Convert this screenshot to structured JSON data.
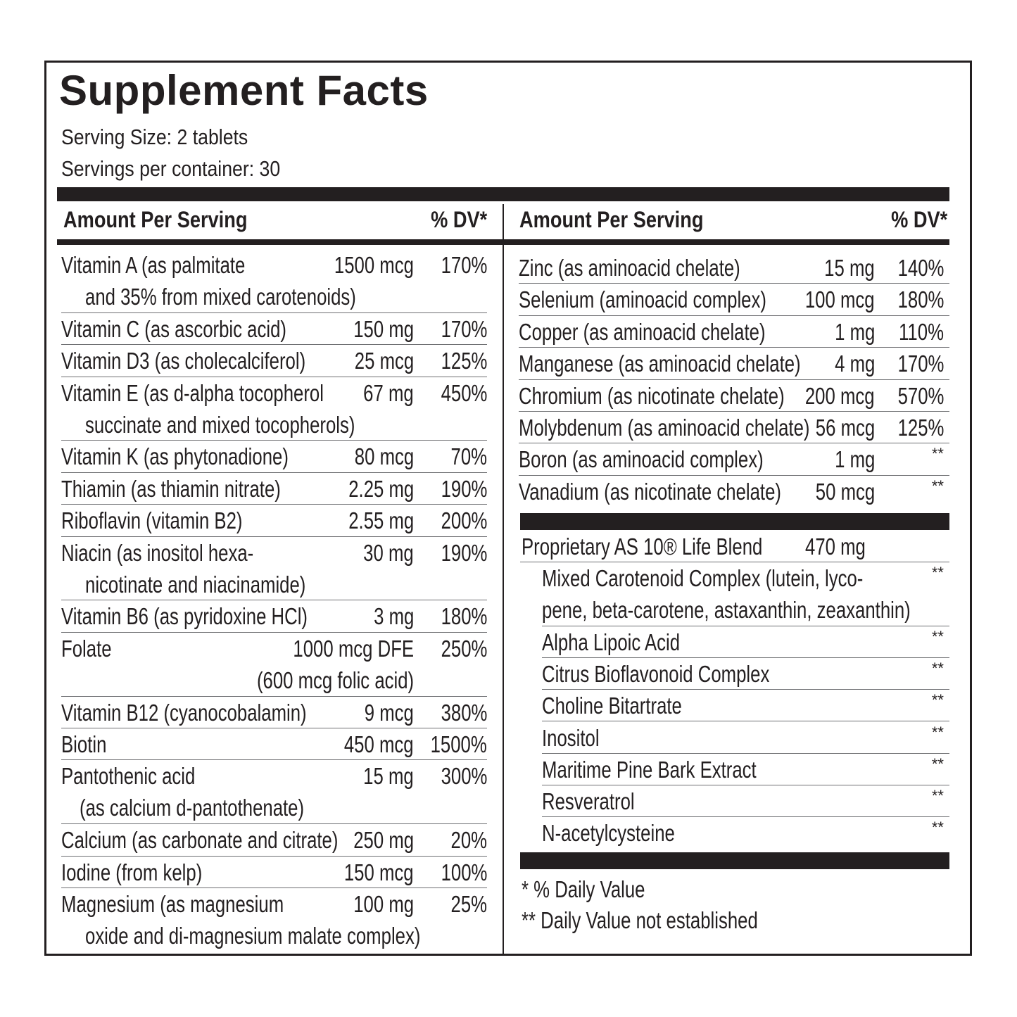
{
  "title": "Supplement Facts",
  "serving_size": "Serving Size:  2 tablets",
  "servings_per_container": "Servings per container:  30",
  "header": {
    "left_amount": "Amount Per Serving",
    "left_dv": "% DV*",
    "right_amount": "Amount Per Serving",
    "right_dv": "% DV*"
  },
  "left_rows": [
    {
      "l1": "Vitamin A (as palmitate",
      "l2": "and 35% from mixed carotenoids)",
      "amt": "1500 mcg",
      "dv": "170%"
    },
    {
      "l1": "Vitamin C (as ascorbic acid)",
      "amt": "150 mg",
      "dv": "170%"
    },
    {
      "l1": "Vitamin D3 (as cholecalciferol)",
      "amt": "25 mcg",
      "dv": "125%"
    },
    {
      "l1": "Vitamin E (as d-alpha tocopherol",
      "l2": "succinate and mixed tocopherols)",
      "amt": "67 mg",
      "dv": "450%"
    },
    {
      "l1": "Vitamin K (as phytonadione)",
      "amt": "80 mcg",
      "dv": "70%"
    },
    {
      "l1": "Thiamin (as thiamin nitrate)",
      "amt": "2.25 mg",
      "dv": "190%"
    },
    {
      "l1": "Riboflavin (vitamin B2)",
      "amt": "2.55 mg",
      "dv": "200%"
    },
    {
      "l1": "Niacin (as inositol hexa-",
      "l2": "nicotinate and niacinamide)",
      "amt": "30 mg",
      "dv": "190%"
    },
    {
      "l1": "Vitamin B6 (as pyridoxine HCl)",
      "amt": "3 mg",
      "dv": "180%"
    },
    {
      "l1": "Folate",
      "amt": "1000 mcg DFE",
      "amt2": "(600 mcg folic acid)",
      "dv": "250%"
    },
    {
      "l1": "Vitamin B12 (cyanocobalamin)",
      "amt": "9 mcg",
      "dv": "380%"
    },
    {
      "l1": "Biotin",
      "amt": "450 mcg",
      "dv": "1500%"
    },
    {
      "l1": "Pantothenic acid",
      "l2": "(as calcium d-pantothenate)",
      "amt": "15 mg",
      "dv": "300%"
    },
    {
      "l1": "Calcium (as carbonate and citrate)",
      "amt": "250 mg",
      "dv": "20%"
    },
    {
      "l1": "Iodine (from kelp)",
      "amt": "150 mcg",
      "dv": "100%"
    },
    {
      "l1": "Magnesium (as magnesium",
      "l2": "oxide and di-magnesium malate complex)",
      "amt": "100 mg",
      "dv": "25%"
    }
  ],
  "right_rows": [
    {
      "l1": "Zinc (as aminoacid chelate)",
      "amt": "15 mg",
      "dv": "140%"
    },
    {
      "l1": "Selenium (aminoacid complex)",
      "amt": "100 mcg",
      "dv": "180%"
    },
    {
      "l1": "Copper (as aminoacid chelate)",
      "amt": "1 mg",
      "dv": "110%"
    },
    {
      "l1": "Manganese (as aminoacid chelate)",
      "amt": "4 mg",
      "dv": "170%"
    },
    {
      "l1": "Chromium (as nicotinate chelate)",
      "amt": "200 mcg",
      "dv": "570%"
    },
    {
      "l1": "Molybdenum (as aminoacid chelate)",
      "amt": "56 mcg",
      "dv": "125%"
    },
    {
      "l1": "Boron (as aminoacid complex)",
      "amt": "1 mg",
      "dv": "**"
    },
    {
      "l1": "Vanadium (as nicotinate chelate)",
      "amt": "50 mcg",
      "dv": "**"
    }
  ],
  "blend": {
    "name": "Proprietary AS 10® Life Blend",
    "amount": "470 mg",
    "items": [
      {
        "l1": "Mixed Carotenoid Complex (lutein, lyco-",
        "l2": "pene, beta-carotene, astaxanthin, zeaxanthin)",
        "dv": "**"
      },
      {
        "l1": "Alpha Lipoic Acid",
        "dv": "**"
      },
      {
        "l1": "Citrus Bioflavonoid Complex",
        "dv": "**"
      },
      {
        "l1": "Choline Bitartrate",
        "dv": "**"
      },
      {
        "l1": "Inositol",
        "dv": "**"
      },
      {
        "l1": "Maritime Pine Bark Extract",
        "dv": "**"
      },
      {
        "l1": "Resveratrol",
        "dv": "**"
      },
      {
        "l1": "N-acetylcysteine",
        "dv": "**"
      }
    ]
  },
  "footnotes": {
    "dv_note": "* % Daily Value",
    "not_established": "** Daily Value not established"
  }
}
